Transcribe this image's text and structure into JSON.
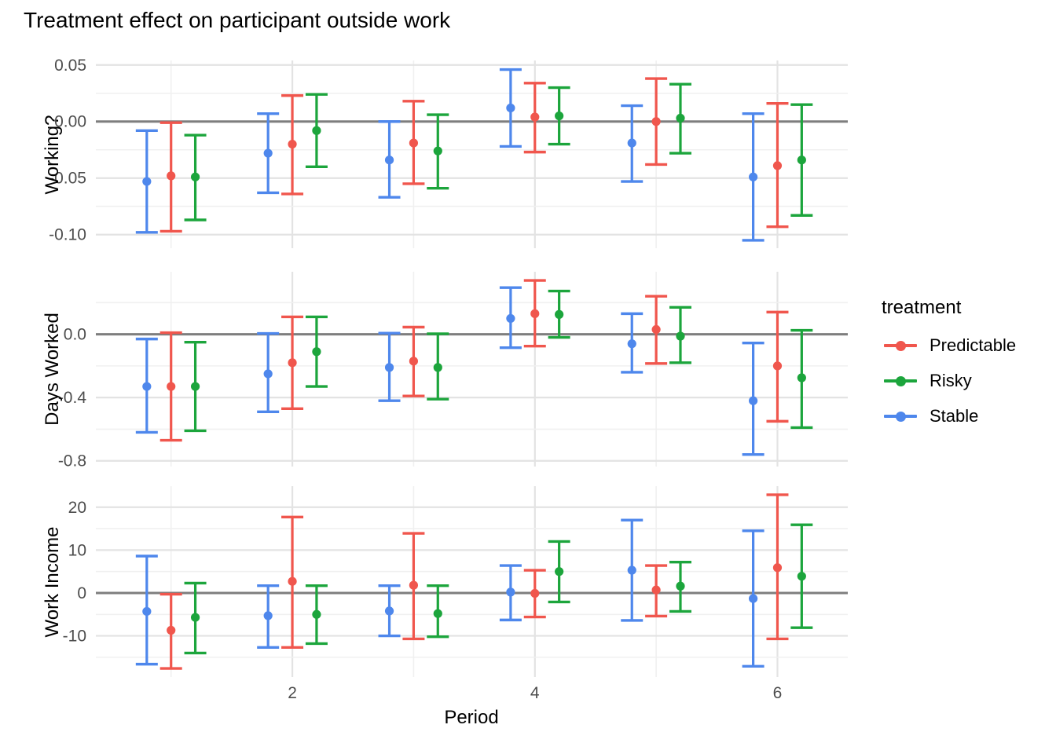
{
  "title": "Treatment effect on participant outside work",
  "x_axis": {
    "label": "Period",
    "tick_labels": [
      "2",
      "4",
      "6"
    ]
  },
  "legend": {
    "title": "treatment",
    "items": [
      {
        "label": "Predictable",
        "color": "#F0564D"
      },
      {
        "label": "Risky",
        "color": "#1CA53C"
      },
      {
        "label": "Stable",
        "color": "#4E87EC"
      }
    ]
  },
  "colors": {
    "zero_line": "#7E7E7E",
    "grid_major": "#E3E3E3",
    "grid_minor": "#F0F0F0",
    "tick_label": "#4D4D4D",
    "background": "#FFFFFF"
  },
  "chart_data": {
    "type": "pointrange-errorbar",
    "title": "Treatment effect on participant outside work",
    "xlabel": "Period",
    "x_domain": [
      0.38,
      6.58
    ],
    "x_major_ticks": [
      2,
      4,
      6
    ],
    "x_minor_ticks": [
      1,
      3,
      5
    ],
    "grid": true,
    "legend_position": "right",
    "zero_reference_line": 0,
    "dodge_offsets": {
      "Stable": -0.2,
      "Predictable": 0,
      "Risky": 0.2
    },
    "series_colors": {
      "Stable": "#4E87EC",
      "Predictable": "#F0564D",
      "Risky": "#1CA53C"
    },
    "panels": [
      {
        "ylabel": "Working?",
        "ylim": [
          -0.112,
          0.054
        ],
        "yticks": [
          {
            "v": 0.05,
            "label": "0.05"
          },
          {
            "v": 0.0,
            "label": "0.00"
          },
          {
            "v": -0.05,
            "label": "-0.05"
          },
          {
            "v": -0.1,
            "label": "-0.10"
          }
        ],
        "minor_gridlines": [
          0.025,
          -0.025,
          -0.075
        ],
        "series": {
          "Stable": [
            {
              "x": 1,
              "y": -0.053,
              "lo": -0.098,
              "hi": -0.008
            },
            {
              "x": 2,
              "y": -0.028,
              "lo": -0.063,
              "hi": 0.007
            },
            {
              "x": 3,
              "y": -0.034,
              "lo": -0.067,
              "hi": 0.0
            },
            {
              "x": 4,
              "y": 0.012,
              "lo": -0.022,
              "hi": 0.046
            },
            {
              "x": 5,
              "y": -0.019,
              "lo": -0.053,
              "hi": 0.014
            },
            {
              "x": 6,
              "y": -0.049,
              "lo": -0.105,
              "hi": 0.007
            }
          ],
          "Predictable": [
            {
              "x": 1,
              "y": -0.048,
              "lo": -0.097,
              "hi": -0.001
            },
            {
              "x": 2,
              "y": -0.02,
              "lo": -0.064,
              "hi": 0.023
            },
            {
              "x": 3,
              "y": -0.019,
              "lo": -0.055,
              "hi": 0.018
            },
            {
              "x": 4,
              "y": 0.004,
              "lo": -0.027,
              "hi": 0.034
            },
            {
              "x": 5,
              "y": 0.0,
              "lo": -0.038,
              "hi": 0.038
            },
            {
              "x": 6,
              "y": -0.039,
              "lo": -0.093,
              "hi": 0.016
            }
          ],
          "Risky": [
            {
              "x": 1,
              "y": -0.049,
              "lo": -0.087,
              "hi": -0.012
            },
            {
              "x": 2,
              "y": -0.008,
              "lo": -0.04,
              "hi": 0.024
            },
            {
              "x": 3,
              "y": -0.026,
              "lo": -0.059,
              "hi": 0.006
            },
            {
              "x": 4,
              "y": 0.005,
              "lo": -0.02,
              "hi": 0.03
            },
            {
              "x": 5,
              "y": 0.003,
              "lo": -0.028,
              "hi": 0.033
            },
            {
              "x": 6,
              "y": -0.034,
              "lo": -0.083,
              "hi": 0.015
            }
          ]
        }
      },
      {
        "ylabel": "Days Worked",
        "ylim": [
          -0.836,
          0.395
        ],
        "yticks": [
          {
            "v": 0.0,
            "label": "0.0"
          },
          {
            "v": -0.4,
            "label": "-0.4"
          },
          {
            "v": -0.8,
            "label": "-0.8"
          }
        ],
        "minor_gridlines": [
          0.2,
          -0.2,
          -0.6
        ],
        "series": {
          "Stable": [
            {
              "x": 1,
              "y": -0.33,
              "lo": -0.62,
              "hi": -0.03
            },
            {
              "x": 2,
              "y": -0.25,
              "lo": -0.49,
              "hi": 0.005
            },
            {
              "x": 3,
              "y": -0.21,
              "lo": -0.42,
              "hi": 0.007
            },
            {
              "x": 4,
              "y": 0.1,
              "lo": -0.085,
              "hi": 0.295
            },
            {
              "x": 5,
              "y": -0.06,
              "lo": -0.24,
              "hi": 0.13
            },
            {
              "x": 6,
              "y": -0.42,
              "lo": -0.76,
              "hi": -0.055
            }
          ],
          "Predictable": [
            {
              "x": 1,
              "y": -0.33,
              "lo": -0.67,
              "hi": 0.01
            },
            {
              "x": 2,
              "y": -0.18,
              "lo": -0.47,
              "hi": 0.11
            },
            {
              "x": 3,
              "y": -0.17,
              "lo": -0.39,
              "hi": 0.045
            },
            {
              "x": 4,
              "y": 0.13,
              "lo": -0.075,
              "hi": 0.34
            },
            {
              "x": 5,
              "y": 0.03,
              "lo": -0.185,
              "hi": 0.24
            },
            {
              "x": 6,
              "y": -0.2,
              "lo": -0.55,
              "hi": 0.14
            }
          ],
          "Risky": [
            {
              "x": 1,
              "y": -0.33,
              "lo": -0.61,
              "hi": -0.05
            },
            {
              "x": 2,
              "y": -0.11,
              "lo": -0.33,
              "hi": 0.11
            },
            {
              "x": 3,
              "y": -0.21,
              "lo": -0.41,
              "hi": 0.003
            },
            {
              "x": 4,
              "y": 0.125,
              "lo": -0.02,
              "hi": 0.273
            },
            {
              "x": 5,
              "y": -0.012,
              "lo": -0.18,
              "hi": 0.17
            },
            {
              "x": 6,
              "y": -0.275,
              "lo": -0.59,
              "hi": 0.025
            }
          ]
        }
      },
      {
        "ylabel": "Work Income",
        "ylim": [
          -19.6,
          24.9
        ],
        "yticks": [
          {
            "v": 20,
            "label": "20"
          },
          {
            "v": 10,
            "label": "10"
          },
          {
            "v": 0,
            "label": "0"
          },
          {
            "v": -10,
            "label": "-10"
          }
        ],
        "minor_gridlines": [
          15,
          5,
          -5,
          -15
        ],
        "series": {
          "Stable": [
            {
              "x": 1,
              "y": -4.3,
              "lo": -16.6,
              "hi": 8.6
            },
            {
              "x": 2,
              "y": -5.3,
              "lo": -12.7,
              "hi": 1.7
            },
            {
              "x": 3,
              "y": -4.2,
              "lo": -10.0,
              "hi": 1.7
            },
            {
              "x": 4,
              "y": 0.2,
              "lo": -6.3,
              "hi": 6.4
            },
            {
              "x": 5,
              "y": 5.3,
              "lo": -6.4,
              "hi": 17.0
            },
            {
              "x": 6,
              "y": -1.3,
              "lo": -17.1,
              "hi": 14.5
            }
          ],
          "Predictable": [
            {
              "x": 1,
              "y": -8.7,
              "lo": -17.6,
              "hi": -0.3
            },
            {
              "x": 2,
              "y": 2.7,
              "lo": -12.7,
              "hi": 17.7
            },
            {
              "x": 3,
              "y": 1.8,
              "lo": -10.7,
              "hi": 13.9
            },
            {
              "x": 4,
              "y": -0.1,
              "lo": -5.6,
              "hi": 5.3
            },
            {
              "x": 5,
              "y": 0.7,
              "lo": -5.4,
              "hi": 6.4
            },
            {
              "x": 6,
              "y": 5.9,
              "lo": -10.7,
              "hi": 22.9
            }
          ],
          "Risky": [
            {
              "x": 1,
              "y": -5.7,
              "lo": -14.0,
              "hi": 2.3
            },
            {
              "x": 2,
              "y": -5.0,
              "lo": -11.8,
              "hi": 1.7
            },
            {
              "x": 3,
              "y": -4.8,
              "lo": -10.2,
              "hi": 1.7
            },
            {
              "x": 4,
              "y": 5.0,
              "lo": -2.1,
              "hi": 12.0
            },
            {
              "x": 5,
              "y": 1.6,
              "lo": -4.3,
              "hi": 7.2
            },
            {
              "x": 6,
              "y": 3.9,
              "lo": -8.1,
              "hi": 15.9
            }
          ]
        }
      }
    ]
  }
}
